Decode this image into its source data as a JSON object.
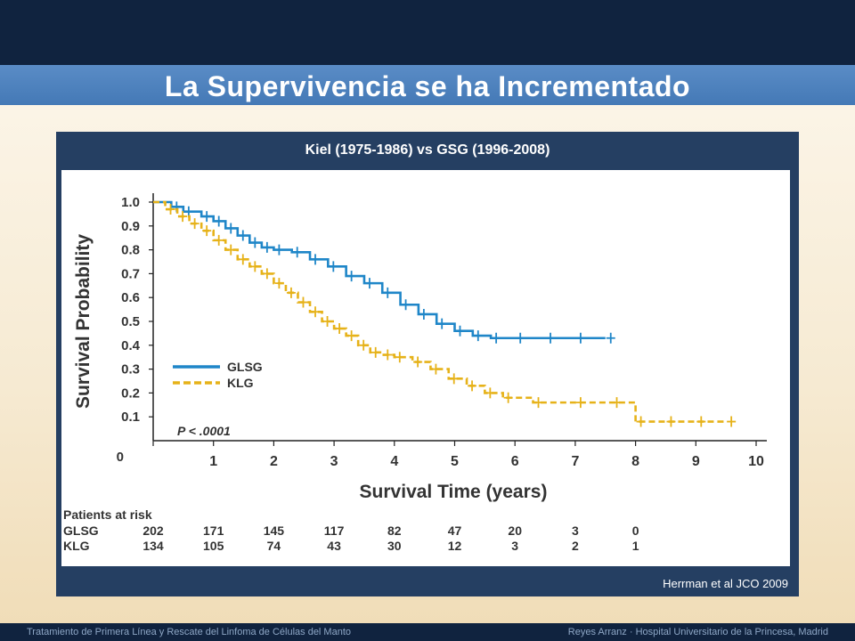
{
  "slide": {
    "title": "La Supervivencia se ha Incrementado",
    "panel_title": "Kiel (1975-1986) vs GSG (1996-2008)",
    "source": "Herrman et al JCO 2009",
    "footer_left": "Tratamiento de Primera Línea y Rescate del Linfoma de Células del Manto",
    "footer_right": "Reyes Arranz · Hospital Universitario de la Princesa, Madrid"
  },
  "chart_data": {
    "type": "line",
    "step": true,
    "xlabel": "Survival Time (years)",
    "ylabel": "Survival Probability",
    "xlim": [
      0,
      10
    ],
    "ylim": [
      0,
      1.0
    ],
    "x_ticks": [
      0,
      1,
      2,
      3,
      4,
      5,
      6,
      7,
      8,
      9,
      10
    ],
    "y_ticks": [
      "0",
      "0.1",
      "0.2",
      "0.3",
      "0.4",
      "0.5",
      "0.6",
      "0.7",
      "0.8",
      "0.9",
      "1.0"
    ],
    "annotation": "P < .0001",
    "legend_position": "center-left",
    "series": [
      {
        "name": "GLSG",
        "color": "#1f86c8",
        "style": "solid",
        "x": [
          0,
          0.3,
          0.5,
          0.8,
          1.0,
          1.2,
          1.4,
          1.6,
          1.8,
          2.0,
          2.3,
          2.6,
          2.9,
          3.2,
          3.5,
          3.8,
          4.1,
          4.4,
          4.7,
          5.0,
          5.3,
          5.6,
          6.0,
          6.5,
          7.0,
          7.5
        ],
        "y": [
          1.0,
          0.98,
          0.96,
          0.94,
          0.92,
          0.89,
          0.86,
          0.83,
          0.81,
          0.8,
          0.79,
          0.76,
          0.73,
          0.69,
          0.66,
          0.62,
          0.57,
          0.53,
          0.49,
          0.46,
          0.44,
          0.43,
          0.43,
          0.43,
          0.43,
          0.43
        ]
      },
      {
        "name": "KLG",
        "color": "#e6b219",
        "style": "dashed",
        "x": [
          0,
          0.2,
          0.4,
          0.6,
          0.8,
          1.0,
          1.2,
          1.4,
          1.6,
          1.8,
          2.0,
          2.2,
          2.4,
          2.6,
          2.8,
          3.0,
          3.2,
          3.4,
          3.6,
          3.8,
          4.0,
          4.3,
          4.6,
          4.9,
          5.2,
          5.5,
          5.8,
          6.3,
          7.0,
          7.6,
          8.0,
          8.5,
          9.0,
          9.5
        ],
        "y": [
          1.0,
          0.97,
          0.94,
          0.91,
          0.88,
          0.84,
          0.8,
          0.76,
          0.73,
          0.7,
          0.66,
          0.62,
          0.58,
          0.54,
          0.5,
          0.47,
          0.44,
          0.4,
          0.37,
          0.36,
          0.35,
          0.33,
          0.3,
          0.26,
          0.23,
          0.2,
          0.18,
          0.16,
          0.16,
          0.16,
          0.08,
          0.08,
          0.08,
          0.08
        ]
      }
    ],
    "risk_table": {
      "title": "Patients at risk",
      "rows": [
        {
          "label": "GLSG",
          "values": [
            "202",
            "171",
            "145",
            "117",
            "82",
            "47",
            "20",
            "3",
            "0"
          ]
        },
        {
          "label": "KLG",
          "values": [
            "134",
            "105",
            "74",
            "43",
            "30",
            "12",
            "3",
            "2",
            "1"
          ]
        }
      ]
    }
  }
}
